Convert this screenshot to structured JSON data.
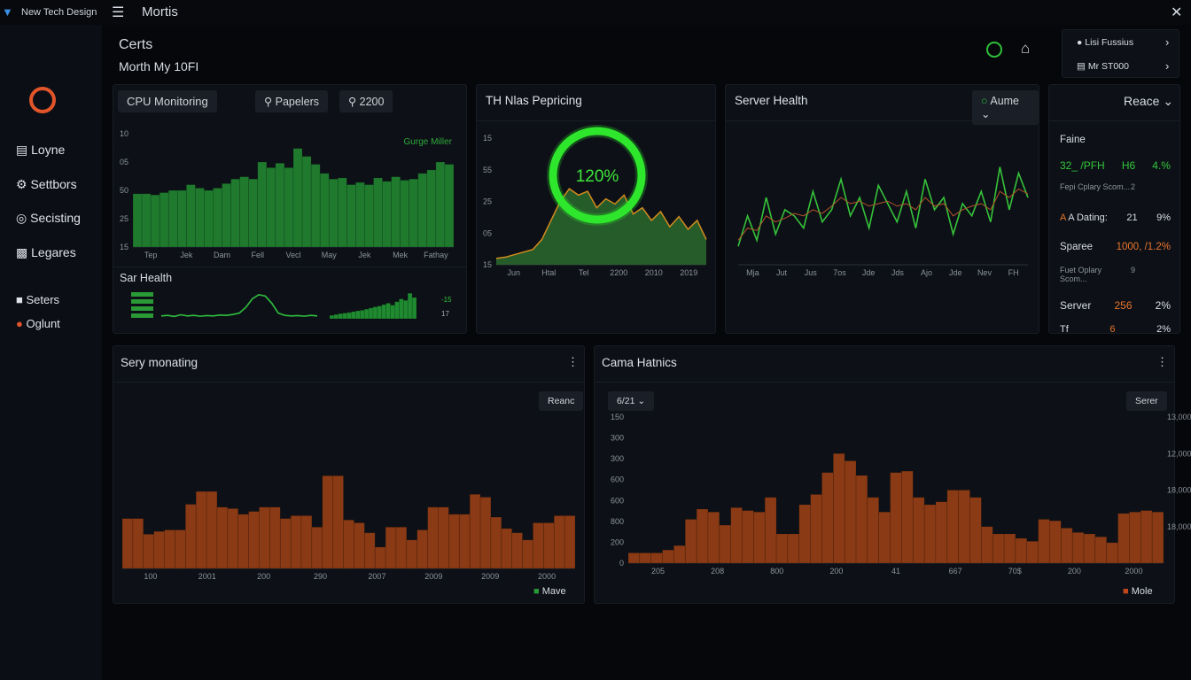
{
  "topbar": {
    "brand": "New Tech Design",
    "title": "Mortis"
  },
  "sidebar": {
    "items": [
      "Loyne",
      "Settbors",
      "Secisting",
      "Legares"
    ],
    "items2": [
      "Seters",
      "Oglunt"
    ]
  },
  "header": {
    "title": "Certs",
    "subtitle": "Morth My 10FI",
    "user": {
      "name": "Lisi Fussius",
      "role": "Mr ST000"
    }
  },
  "cpu": {
    "title": "CPU Monitoring",
    "buttons": [
      "Papelers",
      "2200"
    ],
    "chart": {
      "type": "bar",
      "color": "#1f7a2e",
      "legend": "Gurge Miller",
      "ylim": [
        0,
        100
      ],
      "y_labels": [
        "10",
        "05",
        "50",
        "25",
        "15"
      ],
      "x_labels": [
        "Tep",
        "Jek",
        "Dam",
        "Fell",
        "Vecl",
        "May",
        "Jek",
        "Mek",
        "Fathay"
      ],
      "values": [
        47,
        47,
        46,
        48,
        50,
        50,
        55,
        52,
        50,
        52,
        56,
        60,
        62,
        60,
        75,
        70,
        74,
        70,
        87,
        80,
        73,
        65,
        60,
        61,
        55,
        57,
        55,
        61,
        58,
        62,
        59,
        60,
        65,
        68,
        75,
        73
      ]
    },
    "health": {
      "title": "Sar Health",
      "line": {
        "type": "line",
        "ylim": [
          0,
          100
        ],
        "series": [
          {
            "color": "#2fbf3e",
            "values": [
              10,
              12,
              8,
              14,
              10,
              12,
              9,
              11,
              10,
              13,
              12,
              15,
              20,
              40,
              70,
              85,
              80,
              55,
              20,
              12,
              10,
              11,
              9,
              12,
              10
            ]
          }
        ]
      },
      "bars": {
        "type": "bar",
        "color": "#1f8a30",
        "ylim": [
          0,
          100
        ],
        "values": [
          12,
          15,
          18,
          20,
          22,
          25,
          28,
          30,
          34,
          38,
          42,
          45,
          50,
          55,
          48,
          60,
          70,
          65,
          90,
          75
        ]
      },
      "labels": [
        "-15",
        "17"
      ]
    }
  },
  "pricing": {
    "title": "TH Nlas Pepricing",
    "gauge": {
      "value": 120,
      "value_label": "120%",
      "color": "#2ee62b"
    },
    "chart": {
      "type": "area",
      "color": "#2a6a2e",
      "line_color": "#d48a1e",
      "ylim": [
        0,
        100
      ],
      "y_labels": [
        "15",
        "55",
        "25",
        "05",
        "15"
      ],
      "x_labels": [
        "Jun",
        "Htal",
        "Tel",
        "2200",
        "2010",
        "2019"
      ],
      "values": [
        5,
        6,
        8,
        10,
        12,
        20,
        35,
        50,
        60,
        55,
        58,
        45,
        52,
        48,
        55,
        40,
        45,
        35,
        42,
        30,
        38,
        28,
        35,
        20
      ]
    }
  },
  "server": {
    "title": "Server Health",
    "dropdown": "Aume",
    "chart": {
      "type": "line",
      "ylim": [
        0,
        100
      ],
      "x_labels": [
        "Mja",
        "Jut",
        "Jus",
        "7os",
        "Jde",
        "Jds",
        "Ajo",
        "Jde",
        "Nev",
        "FH"
      ],
      "series": [
        {
          "color": "#36c23a",
          "values": [
            15,
            40,
            20,
            55,
            25,
            45,
            40,
            30,
            60,
            35,
            45,
            70,
            40,
            55,
            30,
            65,
            50,
            35,
            60,
            30,
            70,
            45,
            55,
            25,
            50,
            40,
            60,
            35,
            80,
            45,
            75,
            55
          ]
        },
        {
          "color": "#b5542a",
          "values": [
            20,
            30,
            28,
            40,
            35,
            38,
            42,
            40,
            45,
            42,
            48,
            55,
            50,
            52,
            48,
            50,
            52,
            48,
            50,
            45,
            55,
            48,
            50,
            40,
            45,
            48,
            50,
            45,
            60,
            55,
            62,
            58
          ]
        }
      ]
    }
  },
  "side": {
    "title": "Reace",
    "subtitle": "Faine",
    "rows": [
      [
        "32_ /PFH",
        "H6",
        "4.%"
      ],
      [
        "Fepi Cplary Scom...",
        "2"
      ],
      [
        "A Dating:",
        "21",
        "9%"
      ],
      [
        "Sparee",
        "1000, /1.2%"
      ],
      [
        "Fuet Oplary Scom...",
        "9"
      ],
      [
        "Server",
        "256",
        "2%"
      ],
      [
        "Tf",
        "6",
        "2%"
      ]
    ]
  },
  "sery": {
    "title": "Sery monating",
    "button": "Reanc",
    "legend": "Mave",
    "chart": {
      "type": "bar",
      "color": "#8a3a14",
      "ylim": [
        0,
        100
      ],
      "x_labels": [
        "100",
        "2001",
        "200",
        "290",
        "2007",
        "2009",
        "2009",
        "2000"
      ],
      "values": [
        35,
        35,
        24,
        26,
        27,
        27,
        45,
        54,
        54,
        43,
        42,
        38,
        40,
        43,
        43,
        35,
        37,
        37,
        29,
        65,
        65,
        34,
        32,
        25,
        15,
        29,
        29,
        20,
        27,
        43,
        43,
        38,
        38,
        52,
        50,
        36,
        28,
        25,
        20,
        32,
        32,
        37,
        37
      ]
    }
  },
  "cama": {
    "title": "Cama Hatnics",
    "dropdown": "6/21",
    "button": "Serer",
    "legend": "Mole",
    "chart": {
      "type": "bar",
      "color": "#8a3a14",
      "ylim": [
        0,
        100
      ],
      "y_labels": [
        "150",
        "300",
        "300",
        "600",
        "600",
        "800",
        "200",
        "0"
      ],
      "y2_labels": [
        "13,000",
        "12,000",
        "18,000",
        "18,000"
      ],
      "x_labels": [
        "205",
        "208",
        "800",
        "200",
        "41",
        "667",
        "70$",
        "200",
        "2000"
      ],
      "values": [
        7,
        7,
        7,
        9,
        12,
        30,
        37,
        35,
        26,
        38,
        36,
        35,
        45,
        20,
        20,
        40,
        47,
        62,
        75,
        70,
        60,
        45,
        35,
        62,
        63,
        45,
        40,
        42,
        50,
        50,
        45,
        25,
        20,
        20,
        17,
        15,
        30,
        29,
        24,
        21,
        20,
        18,
        14,
        34,
        35,
        36,
        35
      ]
    }
  }
}
